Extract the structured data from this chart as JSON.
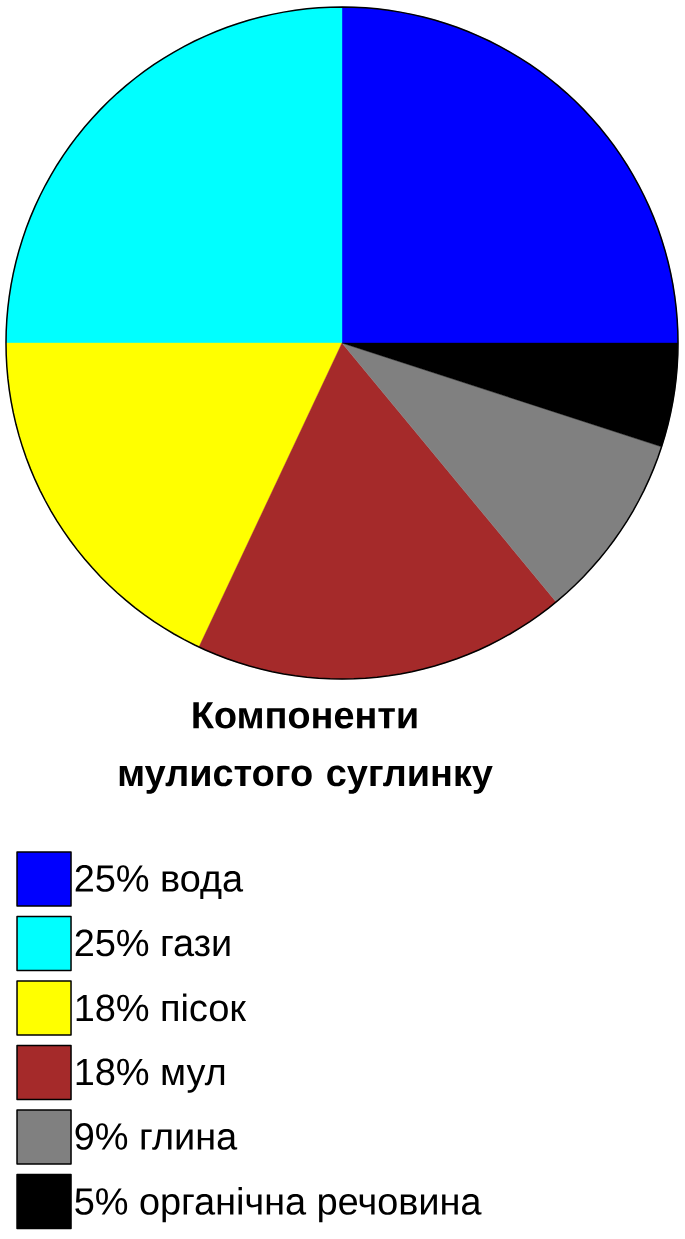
{
  "chart_data": {
    "type": "pie",
    "title": "Компоненти мулистого суглинку",
    "categories": [
      "25% вода",
      "25% гази",
      "18% пісок",
      "18% мул",
      "9% глина",
      "5% органічна речовина"
    ],
    "values": [
      25,
      25,
      18,
      18,
      9,
      5
    ],
    "colors": [
      "#0000ff",
      "#00ffff",
      "#ffff00",
      "#a52a2a",
      "#808080",
      "#000000"
    ],
    "legend": "bottom"
  }
}
